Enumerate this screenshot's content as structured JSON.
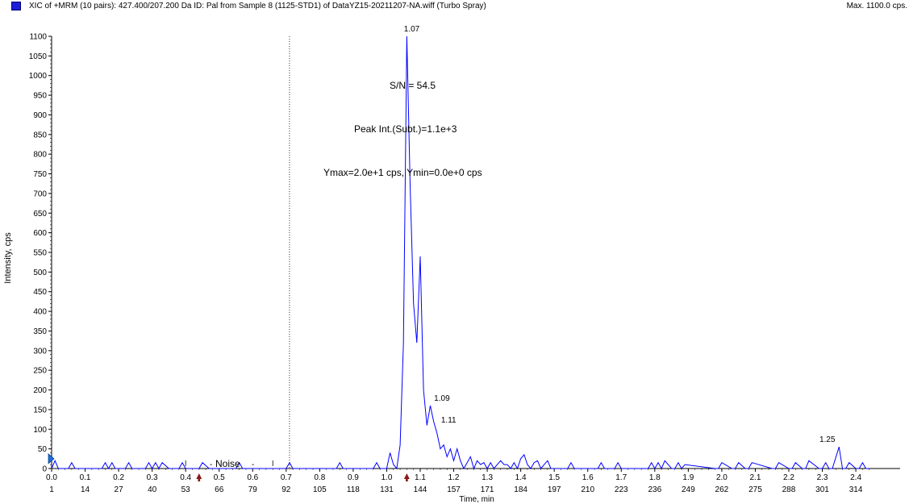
{
  "header": {
    "legend_color": "#1f1fd6",
    "title": "XIC of +MRM (10 pairs): 427.400/207.200 Da ID: Pal from Sample 8 (1125-STD1) of DataYZ15-20211207-NA.wiff (Turbo Spray)",
    "max_label": "Max. 1100.0 cps."
  },
  "chart_data": {
    "type": "line",
    "color": "#0000ff",
    "ylabel": "Intensity, cps",
    "xlabel": "Time, min",
    "xlim": [
      0.0,
      2.46
    ],
    "ylim": [
      0,
      1100
    ],
    "y_ticks": [
      0,
      50,
      100,
      150,
      200,
      250,
      300,
      350,
      400,
      450,
      500,
      550,
      600,
      650,
      700,
      750,
      800,
      850,
      900,
      950,
      1000,
      1050,
      1100
    ],
    "x_ticks": [
      "0.0",
      "0.1",
      "0.2",
      "0.3",
      "0.4",
      "0.5",
      "0.6",
      "0.7",
      "0.8",
      "0.9",
      "1.0",
      "1.1",
      "1.2",
      "1.3",
      "1.4",
      "1.5",
      "1.6",
      "1.7",
      "1.8",
      "1.9",
      "2.0",
      "2.1",
      "2.2",
      "2.3",
      "2.4"
    ],
    "scan_ticks": [
      {
        "x": 0.0,
        "label": "1"
      },
      {
        "x": 0.06,
        "label": "14"
      },
      {
        "x": 0.12,
        "label": "27"
      },
      {
        "x": 0.18,
        "label": "40"
      },
      {
        "x": 0.24,
        "label": "53"
      },
      {
        "x": 0.3,
        "label": "66"
      },
      {
        "x": 0.36,
        "label": "79"
      },
      {
        "x": 0.42,
        "label": "92"
      },
      {
        "x": 0.48,
        "label": "105"
      },
      {
        "x": 0.54,
        "label": "118"
      },
      {
        "x": 0.6,
        "label": "131"
      },
      {
        "x": 0.66,
        "label": "144"
      },
      {
        "x": 0.72,
        "label": "157"
      },
      {
        "x": 0.78,
        "label": "171"
      },
      {
        "x": 0.84,
        "label": "184"
      },
      {
        "x": 0.9,
        "label": "197"
      },
      {
        "x": 0.96,
        "label": "210"
      },
      {
        "x": 1.02,
        "label": "223"
      },
      {
        "x": 1.08,
        "label": "236"
      },
      {
        "x": 1.14,
        "label": "249"
      },
      {
        "x": 1.2,
        "label": "262"
      },
      {
        "x": 1.26,
        "label": "275"
      },
      {
        "x": 1.32,
        "label": "288"
      },
      {
        "x": 1.38,
        "label": "301"
      },
      {
        "x": 1.44,
        "label": "314"
      }
    ],
    "series": [
      {
        "x": [
          0.0,
          0.01,
          0.02,
          0.03,
          0.05,
          0.06,
          0.07,
          0.15,
          0.16,
          0.17,
          0.18,
          0.19,
          0.2,
          0.22,
          0.23,
          0.24,
          0.28,
          0.29,
          0.3,
          0.31,
          0.32,
          0.33,
          0.35,
          0.38,
          0.39,
          0.4,
          0.42,
          0.44,
          0.45,
          0.47,
          0.48,
          0.55,
          0.56,
          0.57,
          0.7,
          0.71,
          0.72,
          0.85,
          0.86,
          0.87,
          0.96,
          0.97,
          0.98,
          1.0,
          1.01,
          1.02,
          1.03,
          1.04,
          1.05,
          1.06,
          1.07,
          1.08,
          1.09,
          1.1,
          1.11,
          1.12,
          1.13,
          1.14,
          1.15,
          1.16,
          1.17,
          1.18,
          1.19,
          1.2,
          1.21,
          1.22,
          1.23,
          1.24,
          1.25,
          1.26,
          1.27,
          1.28,
          1.29,
          1.3,
          1.31,
          1.32,
          1.33,
          1.34,
          1.35,
          1.36,
          1.37,
          1.38,
          1.39,
          1.4,
          1.41,
          1.42,
          1.43,
          1.44,
          1.45,
          1.46,
          1.47,
          1.48,
          1.49,
          1.5,
          1.54,
          1.55,
          1.56,
          1.63,
          1.64,
          1.65,
          1.68,
          1.69,
          1.7,
          1.78,
          1.79,
          1.8,
          1.81,
          1.82,
          1.83,
          1.85,
          1.86,
          1.87,
          1.88,
          1.89,
          1.98,
          1.99,
          2.0,
          2.03,
          2.04,
          2.05,
          2.07,
          2.08,
          2.09,
          2.15,
          2.16,
          2.17,
          2.2,
          2.21,
          2.22,
          2.24,
          2.25,
          2.26,
          2.29,
          2.3,
          2.31,
          2.32,
          2.33,
          2.35,
          2.36,
          2.37,
          2.38,
          2.4,
          2.41,
          2.42,
          2.43,
          2.44
        ],
        "y": [
          0,
          20,
          0,
          0,
          0,
          15,
          0,
          0,
          15,
          0,
          15,
          0,
          0,
          0,
          15,
          0,
          0,
          15,
          0,
          15,
          0,
          15,
          0,
          0,
          15,
          0,
          0,
          0,
          15,
          0,
          0,
          0,
          15,
          0,
          0,
          15,
          0,
          0,
          15,
          0,
          0,
          15,
          0,
          0,
          40,
          10,
          0,
          60,
          320,
          1100,
          720,
          420,
          320,
          540,
          200,
          110,
          160,
          120,
          90,
          50,
          60,
          30,
          50,
          20,
          50,
          20,
          0,
          15,
          30,
          0,
          20,
          10,
          15,
          0,
          15,
          0,
          10,
          20,
          10,
          10,
          0,
          15,
          0,
          25,
          35,
          10,
          0,
          15,
          20,
          0,
          10,
          20,
          0,
          0,
          0,
          15,
          0,
          0,
          15,
          0,
          0,
          15,
          0,
          0,
          15,
          0,
          15,
          0,
          20,
          0,
          0,
          15,
          0,
          10,
          0,
          0,
          15,
          0,
          0,
          15,
          0,
          0,
          15,
          0,
          0,
          15,
          0,
          0,
          15,
          0,
          0,
          20,
          0,
          0,
          15,
          0,
          0,
          55,
          0,
          0,
          15,
          0,
          0,
          15,
          0,
          0
        ]
      }
    ],
    "annotations": {
      "peak_labels": [
        {
          "x": 1.07,
          "y": 1100,
          "label": "1.07"
        },
        {
          "x": 1.16,
          "y": 160,
          "label": "1.09"
        },
        {
          "x": 1.18,
          "y": 105,
          "label": "1.11"
        },
        {
          "x": 2.31,
          "y": 55,
          "label": "1.25"
        }
      ],
      "sn": "S/N = 54.5",
      "peak_int": "Peak Int.(Subt.)=1.1e+3",
      "ymax_ymin": "Ymax=2.0e+1 cps, Ymin=0.0e+0 cps",
      "noise": "Noise",
      "noise_markers": [
        0.44,
        1.06
      ],
      "divider_x": 0.71
    }
  }
}
